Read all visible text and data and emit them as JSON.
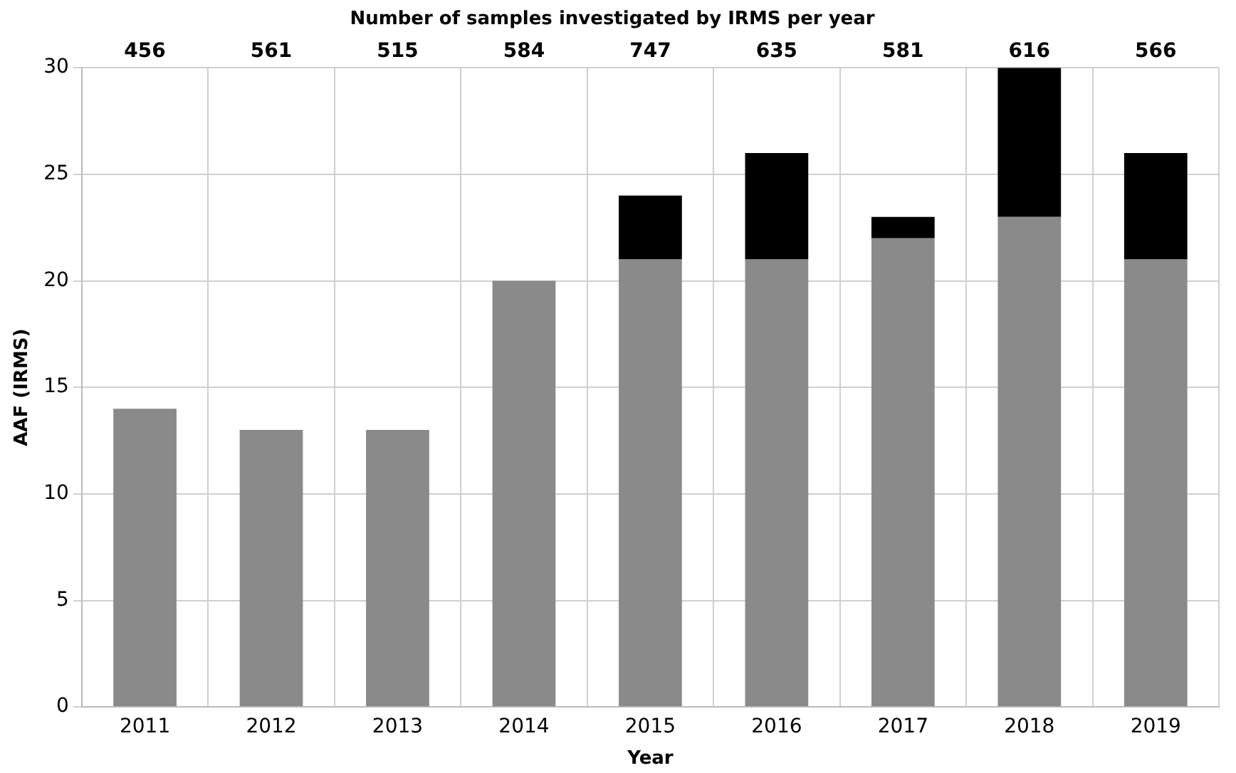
{
  "chart_data": {
    "type": "bar",
    "title": "Number of samples investigated by IRMS per year",
    "xlabel": "Year",
    "ylabel": "AAF (IRMS)",
    "categories": [
      "2011",
      "2012",
      "2013",
      "2014",
      "2015",
      "2016",
      "2017",
      "2018",
      "2019"
    ],
    "stacked": true,
    "series": [
      {
        "color": "#8a8a8a",
        "values": [
          14,
          13,
          13,
          20,
          21,
          21,
          22,
          23,
          21
        ]
      },
      {
        "color": "#000000",
        "values": [
          0,
          0,
          0,
          0,
          3,
          5,
          1,
          7,
          5
        ]
      }
    ],
    "ylim": [
      0,
      30
    ],
    "yticks": [
      0,
      5,
      10,
      15,
      20,
      25,
      30
    ],
    "grid": true,
    "legend": false,
    "annotations": [
      "456",
      "561",
      "515",
      "584",
      "747",
      "635",
      "581",
      "616",
      "566"
    ]
  }
}
